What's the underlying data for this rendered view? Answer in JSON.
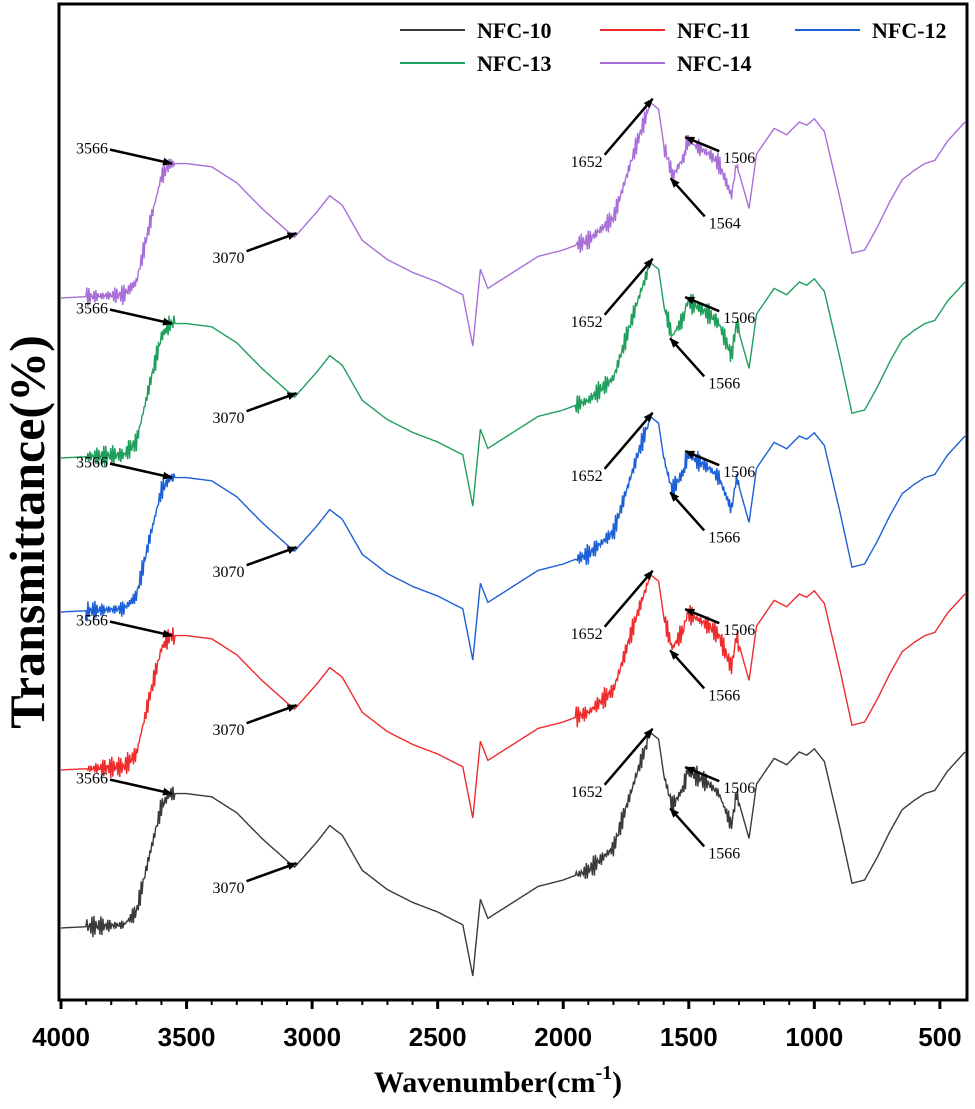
{
  "chart_data": {
    "type": "line",
    "title": "",
    "xlabel": "Wavenumber(cm",
    "xlabel_sup": "-1",
    "xlabel_close": ")",
    "ylabel": "Transmittance(%)",
    "xlim": [
      4000,
      400
    ],
    "x_reversed": true,
    "x_ticks": [
      4000,
      3500,
      3000,
      2500,
      2000,
      1500,
      1000,
      500
    ],
    "y_ticks_shown": false,
    "grid": false,
    "legend_position": "top",
    "colors": {
      "NFC-10": "#3a3a3a",
      "NFC-11": "#ee2c2c",
      "NFC-12": "#1c5fd6",
      "NFC-13": "#1f9e5c",
      "NFC-14": "#a86fd8"
    },
    "legend": [
      "NFC-10",
      "NFC-11",
      "NFC-12",
      "NFC-13",
      "NFC-14"
    ],
    "series": [
      {
        "name": "NFC-10",
        "x": [
          4000,
          3750,
          3700,
          3650,
          3600,
          3566,
          3500,
          3400,
          3300,
          3200,
          3100,
          3070,
          2980,
          2930,
          2880,
          2800,
          2700,
          2600,
          2500,
          2400,
          2360,
          2345,
          2330,
          2300,
          2200,
          2100,
          2000,
          1900,
          1800,
          1700,
          1652,
          1620,
          1600,
          1566,
          1520,
          1506,
          1460,
          1420,
          1380,
          1330,
          1310,
          1260,
          1230,
          1160,
          1110,
          1060,
          1030,
          1000,
          960,
          900,
          850,
          800,
          750,
          700,
          650,
          600,
          560,
          520,
          470,
          400
        ],
        "y": [
          15,
          16,
          20,
          37,
          53,
          57,
          57,
          56,
          51,
          43,
          36,
          34,
          42,
          47,
          44,
          33,
          27,
          23,
          20,
          16,
          0,
          12,
          24,
          18,
          23,
          28,
          30,
          33,
          40,
          65,
          76,
          74,
          63,
          53,
          59,
          64,
          62,
          60,
          57,
          47,
          57,
          43,
          60,
          68,
          66,
          70,
          69,
          71,
          67,
          47,
          29,
          30,
          37,
          45,
          52,
          55,
          57,
          58,
          64,
          70
        ]
      },
      {
        "name": "NFC-11",
        "x": [
          4000,
          3750,
          3700,
          3650,
          3600,
          3566,
          3500,
          3400,
          3300,
          3200,
          3100,
          3070,
          2980,
          2930,
          2880,
          2800,
          2700,
          2600,
          2500,
          2400,
          2360,
          2345,
          2330,
          2300,
          2200,
          2100,
          2000,
          1900,
          1800,
          1700,
          1652,
          1620,
          1600,
          1566,
          1520,
          1506,
          1460,
          1420,
          1380,
          1330,
          1310,
          1260,
          1230,
          1160,
          1110,
          1060,
          1030,
          1000,
          960,
          900,
          850,
          800,
          750,
          700,
          650,
          600,
          560,
          520,
          470,
          400
        ],
        "y": [
          15,
          16,
          20,
          37,
          53,
          57,
          57,
          56,
          51,
          43,
          36,
          34,
          42,
          47,
          44,
          33,
          27,
          23,
          20,
          16,
          0,
          12,
          24,
          18,
          23,
          28,
          30,
          33,
          40,
          65,
          76,
          74,
          63,
          53,
          59,
          64,
          62,
          60,
          57,
          47,
          57,
          43,
          60,
          68,
          66,
          70,
          69,
          71,
          67,
          47,
          29,
          30,
          37,
          45,
          52,
          55,
          57,
          58,
          64,
          70
        ]
      },
      {
        "name": "NFC-12",
        "x": [
          4000,
          3750,
          3700,
          3650,
          3600,
          3566,
          3500,
          3400,
          3300,
          3200,
          3100,
          3070,
          2980,
          2930,
          2880,
          2800,
          2700,
          2600,
          2500,
          2400,
          2360,
          2345,
          2330,
          2300,
          2200,
          2100,
          2000,
          1900,
          1800,
          1700,
          1652,
          1620,
          1600,
          1566,
          1520,
          1506,
          1460,
          1420,
          1380,
          1330,
          1310,
          1260,
          1230,
          1160,
          1110,
          1060,
          1030,
          1000,
          960,
          900,
          850,
          800,
          750,
          700,
          650,
          600,
          560,
          520,
          470,
          400
        ],
        "y": [
          15,
          16,
          20,
          37,
          53,
          57,
          57,
          56,
          51,
          43,
          36,
          34,
          42,
          47,
          44,
          33,
          27,
          23,
          20,
          16,
          0,
          12,
          24,
          18,
          23,
          28,
          30,
          33,
          40,
          65,
          76,
          74,
          63,
          53,
          59,
          64,
          62,
          60,
          57,
          47,
          57,
          43,
          60,
          68,
          66,
          70,
          69,
          71,
          67,
          47,
          29,
          30,
          37,
          45,
          52,
          55,
          57,
          58,
          64,
          70
        ]
      },
      {
        "name": "NFC-13",
        "x": [
          4000,
          3750,
          3700,
          3650,
          3600,
          3566,
          3500,
          3400,
          3300,
          3200,
          3100,
          3070,
          2980,
          2930,
          2880,
          2800,
          2700,
          2600,
          2500,
          2400,
          2360,
          2345,
          2330,
          2300,
          2200,
          2100,
          2000,
          1900,
          1800,
          1700,
          1652,
          1620,
          1600,
          1566,
          1520,
          1506,
          1460,
          1420,
          1380,
          1330,
          1310,
          1260,
          1230,
          1160,
          1110,
          1060,
          1030,
          1000,
          960,
          900,
          850,
          800,
          750,
          700,
          650,
          600,
          560,
          520,
          470,
          400
        ],
        "y": [
          15,
          16,
          20,
          37,
          53,
          57,
          57,
          56,
          51,
          43,
          36,
          34,
          42,
          47,
          44,
          33,
          27,
          23,
          20,
          16,
          0,
          12,
          24,
          18,
          23,
          28,
          30,
          33,
          40,
          65,
          76,
          74,
          63,
          53,
          59,
          64,
          62,
          60,
          57,
          47,
          57,
          43,
          60,
          68,
          66,
          70,
          69,
          71,
          67,
          47,
          29,
          30,
          37,
          45,
          52,
          55,
          57,
          58,
          64,
          70
        ]
      },
      {
        "name": "NFC-14",
        "x": [
          4000,
          3750,
          3700,
          3650,
          3600,
          3566,
          3500,
          3400,
          3300,
          3200,
          3100,
          3070,
          2980,
          2930,
          2880,
          2800,
          2700,
          2600,
          2500,
          2400,
          2360,
          2345,
          2330,
          2300,
          2200,
          2100,
          2000,
          1900,
          1800,
          1700,
          1652,
          1620,
          1600,
          1564,
          1520,
          1506,
          1460,
          1420,
          1380,
          1330,
          1310,
          1260,
          1230,
          1160,
          1110,
          1060,
          1030,
          1000,
          960,
          900,
          850,
          800,
          750,
          700,
          650,
          600,
          560,
          520,
          470,
          400
        ],
        "y": [
          15,
          16,
          20,
          37,
          53,
          57,
          57,
          56,
          51,
          43,
          36,
          34,
          42,
          47,
          44,
          33,
          27,
          23,
          20,
          16,
          0,
          12,
          24,
          18,
          23,
          28,
          30,
          33,
          40,
          65,
          76,
          74,
          63,
          53,
          59,
          64,
          62,
          60,
          57,
          47,
          57,
          43,
          60,
          68,
          66,
          70,
          69,
          71,
          67,
          47,
          29,
          30,
          37,
          45,
          52,
          55,
          57,
          58,
          64,
          70
        ]
      }
    ],
    "annotations": [
      {
        "series": "NFC-10",
        "labels": [
          "3566",
          "3070",
          "1652",
          "1566",
          "1506"
        ]
      },
      {
        "series": "NFC-11",
        "labels": [
          "3566",
          "3070",
          "1652",
          "1566",
          "1506"
        ]
      },
      {
        "series": "NFC-12",
        "labels": [
          "3566",
          "3070",
          "1652",
          "1566",
          "1506"
        ]
      },
      {
        "series": "NFC-13",
        "labels": [
          "3566",
          "3070",
          "1652",
          "1566",
          "1506"
        ]
      },
      {
        "series": "NFC-14",
        "labels": [
          "3566",
          "3070",
          "1652",
          "1564",
          "1506"
        ]
      }
    ]
  }
}
